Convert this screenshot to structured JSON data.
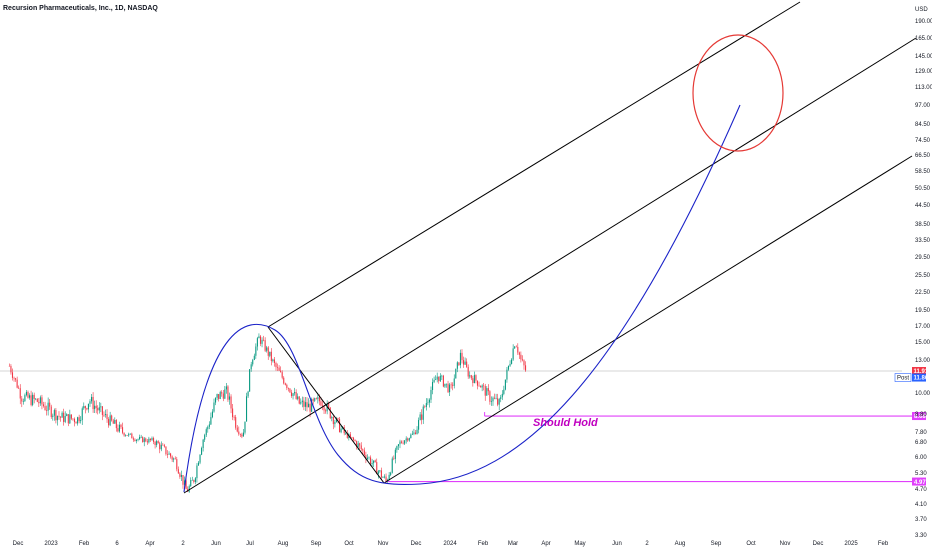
{
  "chart_data": {
    "type": "candlestick",
    "title": "Recursion Pharmaceuticals, Inc., 1D, NASDAQ",
    "currency": "USD",
    "scale": "log",
    "ylim": [
      3.3,
      190.0
    ],
    "x_ticks": [
      "Dec",
      "2023",
      "Feb",
      "6",
      "Apr",
      "2",
      "Jun",
      "Jul",
      "Aug",
      "Sep",
      "Oct",
      "Nov",
      "Dec",
      "2024",
      "Feb",
      "Mar",
      "Apr",
      "May",
      "Jun",
      "2",
      "Aug",
      "Sep",
      "Oct",
      "Nov",
      "Dec",
      "2025",
      "Feb"
    ],
    "y_ticks": [
      "190.00",
      "165.00",
      "145.00",
      "129.00",
      "113.00",
      "97.00",
      "84.50",
      "74.50",
      "66.50",
      "58.50",
      "50.50",
      "44.50",
      "38.50",
      "33.50",
      "29.50",
      "25.50",
      "22.50",
      "19.50",
      "17.00",
      "15.00",
      "13.00",
      "10.00",
      "8.80",
      "7.80",
      "6.80",
      "6.00",
      "5.30",
      "4.70",
      "4.10",
      "3.70",
      "3.30"
    ],
    "price_path": [
      {
        "date": "2022-11-24",
        "price": 12.4
      },
      {
        "date": "2022-12-05",
        "price": 9.8
      },
      {
        "date": "2022-12-20",
        "price": 9.5
      },
      {
        "date": "2023-01-10",
        "price": 8.6
      },
      {
        "date": "2023-01-25",
        "price": 8.5
      },
      {
        "date": "2023-02-05",
        "price": 9.6
      },
      {
        "date": "2023-02-15",
        "price": 8.9
      },
      {
        "date": "2023-03-05",
        "price": 7.9
      },
      {
        "date": "2023-03-20",
        "price": 7.1
      },
      {
        "date": "2023-04-05",
        "price": 6.9
      },
      {
        "date": "2023-04-25",
        "price": 5.8
      },
      {
        "date": "2023-05-05",
        "price": 4.6
      },
      {
        "date": "2023-05-12",
        "price": 5.1
      },
      {
        "date": "2023-05-22",
        "price": 7.7
      },
      {
        "date": "2023-06-01",
        "price": 9.7
      },
      {
        "date": "2023-06-10",
        "price": 10.2
      },
      {
        "date": "2023-06-18",
        "price": 8.4
      },
      {
        "date": "2023-06-25",
        "price": 7.4
      },
      {
        "date": "2023-07-03",
        "price": 13.0
      },
      {
        "date": "2023-07-10",
        "price": 15.5
      },
      {
        "date": "2023-07-15",
        "price": 14.5
      },
      {
        "date": "2023-07-25",
        "price": 12.3
      },
      {
        "date": "2023-08-05",
        "price": 10.6
      },
      {
        "date": "2023-08-15",
        "price": 9.4
      },
      {
        "date": "2023-08-25",
        "price": 9.2
      },
      {
        "date": "2023-09-05",
        "price": 9.6
      },
      {
        "date": "2023-09-20",
        "price": 8.2
      },
      {
        "date": "2023-10-10",
        "price": 6.5
      },
      {
        "date": "2023-10-25",
        "price": 5.5
      },
      {
        "date": "2023-11-03",
        "price": 4.97
      },
      {
        "date": "2023-11-15",
        "price": 6.7
      },
      {
        "date": "2023-11-28",
        "price": 7.6
      },
      {
        "date": "2023-12-10",
        "price": 9.5
      },
      {
        "date": "2023-12-20",
        "price": 11.5
      },
      {
        "date": "2024-01-01",
        "price": 10.2
      },
      {
        "date": "2024-01-10",
        "price": 13.5
      },
      {
        "date": "2024-01-18",
        "price": 11.5
      },
      {
        "date": "2024-01-25",
        "price": 11.0
      },
      {
        "date": "2024-02-05",
        "price": 9.8
      },
      {
        "date": "2024-02-15",
        "price": 9.3
      },
      {
        "date": "2024-02-22",
        "price": 12.0
      },
      {
        "date": "2024-02-29",
        "price": 15.2
      },
      {
        "date": "2024-03-05",
        "price": 13.0
      },
      {
        "date": "2024-03-10",
        "price": 11.86
      }
    ],
    "horizontal_levels": [
      {
        "label": "8.68",
        "value": 8.68,
        "color": "#e040fb"
      },
      {
        "label": "4.97",
        "value": 4.97,
        "color": "#e040fb"
      }
    ],
    "last_price": {
      "label": "11.91",
      "value": 11.91,
      "color": "#f23645"
    },
    "post_market": {
      "badge": "Post",
      "label": "11.86",
      "value": 11.86,
      "color": "#2962ff"
    },
    "annotations": [
      {
        "text": "Should Hold",
        "color": "#c000c0"
      }
    ],
    "drawings": {
      "channel_lines": 3,
      "circle_color": "#e53935",
      "arc_color": "#1a22c8",
      "line_color": "#000000"
    }
  }
}
